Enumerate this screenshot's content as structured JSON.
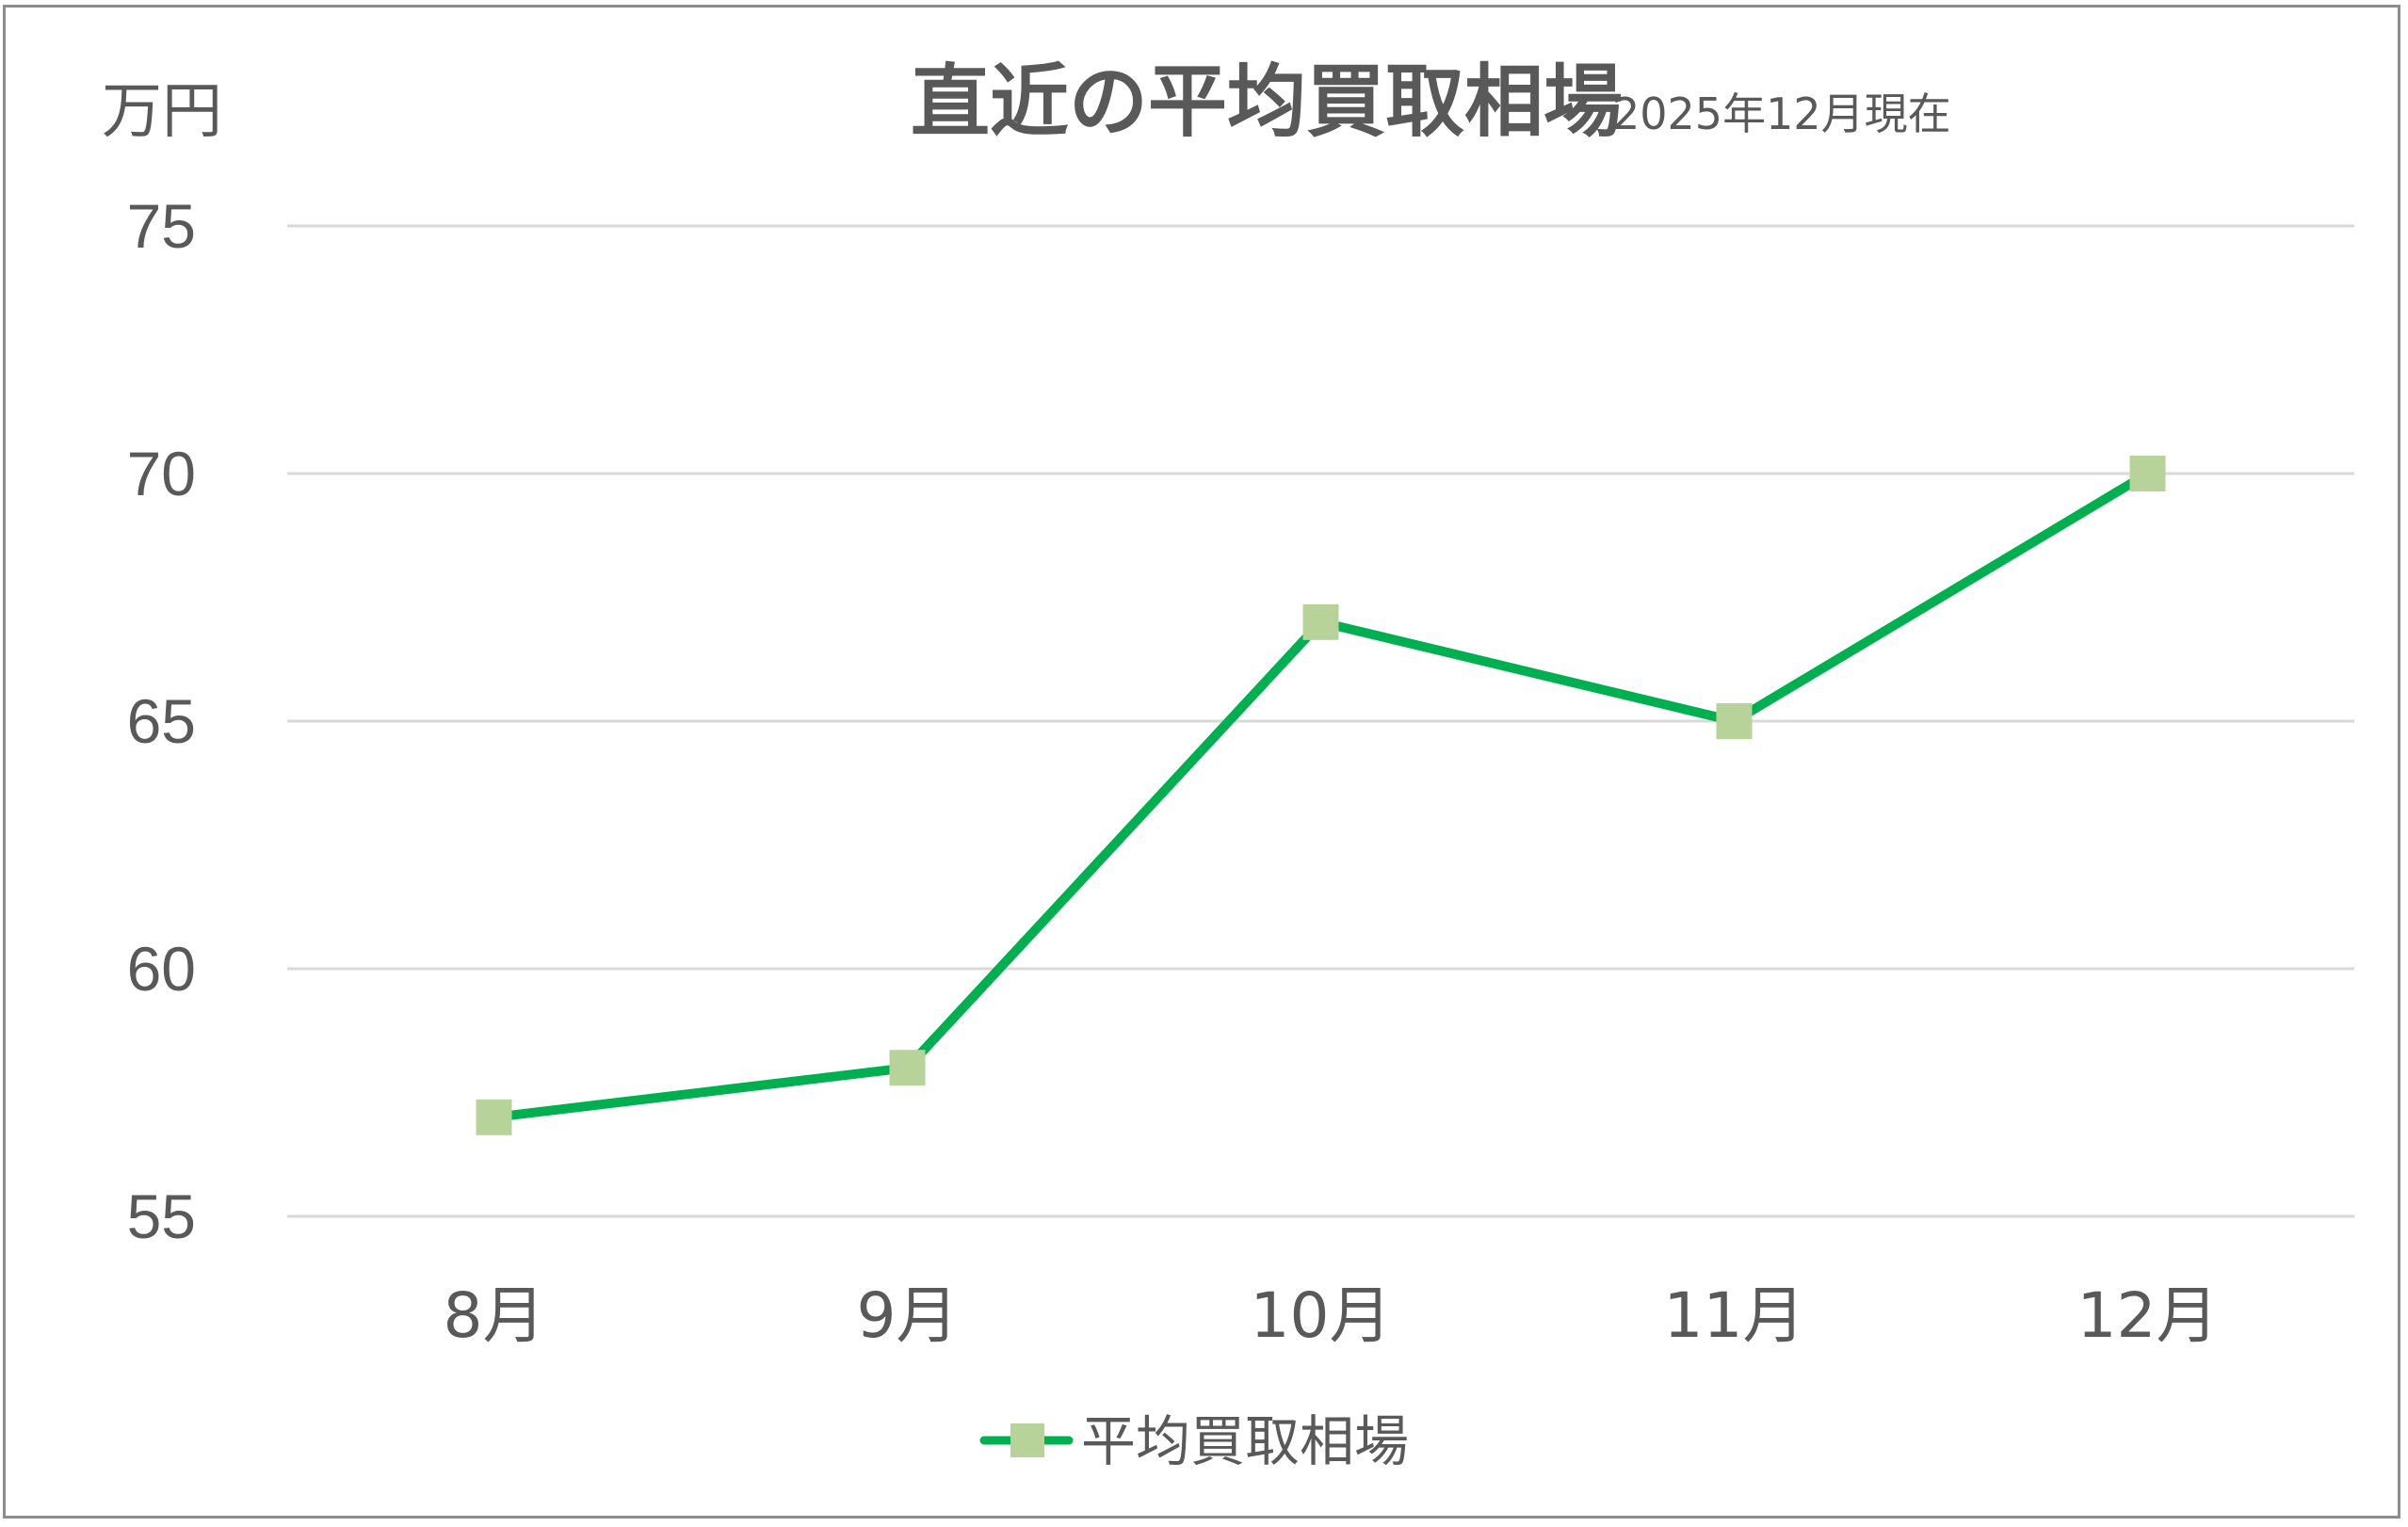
{
  "chart_data": {
    "type": "line",
    "title": "直近の平均買取相場",
    "subtitle": "2025年12月現在",
    "y_unit": "万円",
    "categories": [
      "8月",
      "9月",
      "10月",
      "11月",
      "12月"
    ],
    "series": [
      {
        "name": "平均買取相場",
        "values": [
          57,
          58,
          67,
          65,
          70
        ],
        "line_color": "#00b050",
        "marker_color": "#b8d39a",
        "marker": "square"
      }
    ],
    "ylim": [
      55,
      75
    ],
    "yticks": [
      "55",
      "60",
      "65",
      "70",
      "75"
    ],
    "grid": true,
    "legend_position": "bottom"
  }
}
